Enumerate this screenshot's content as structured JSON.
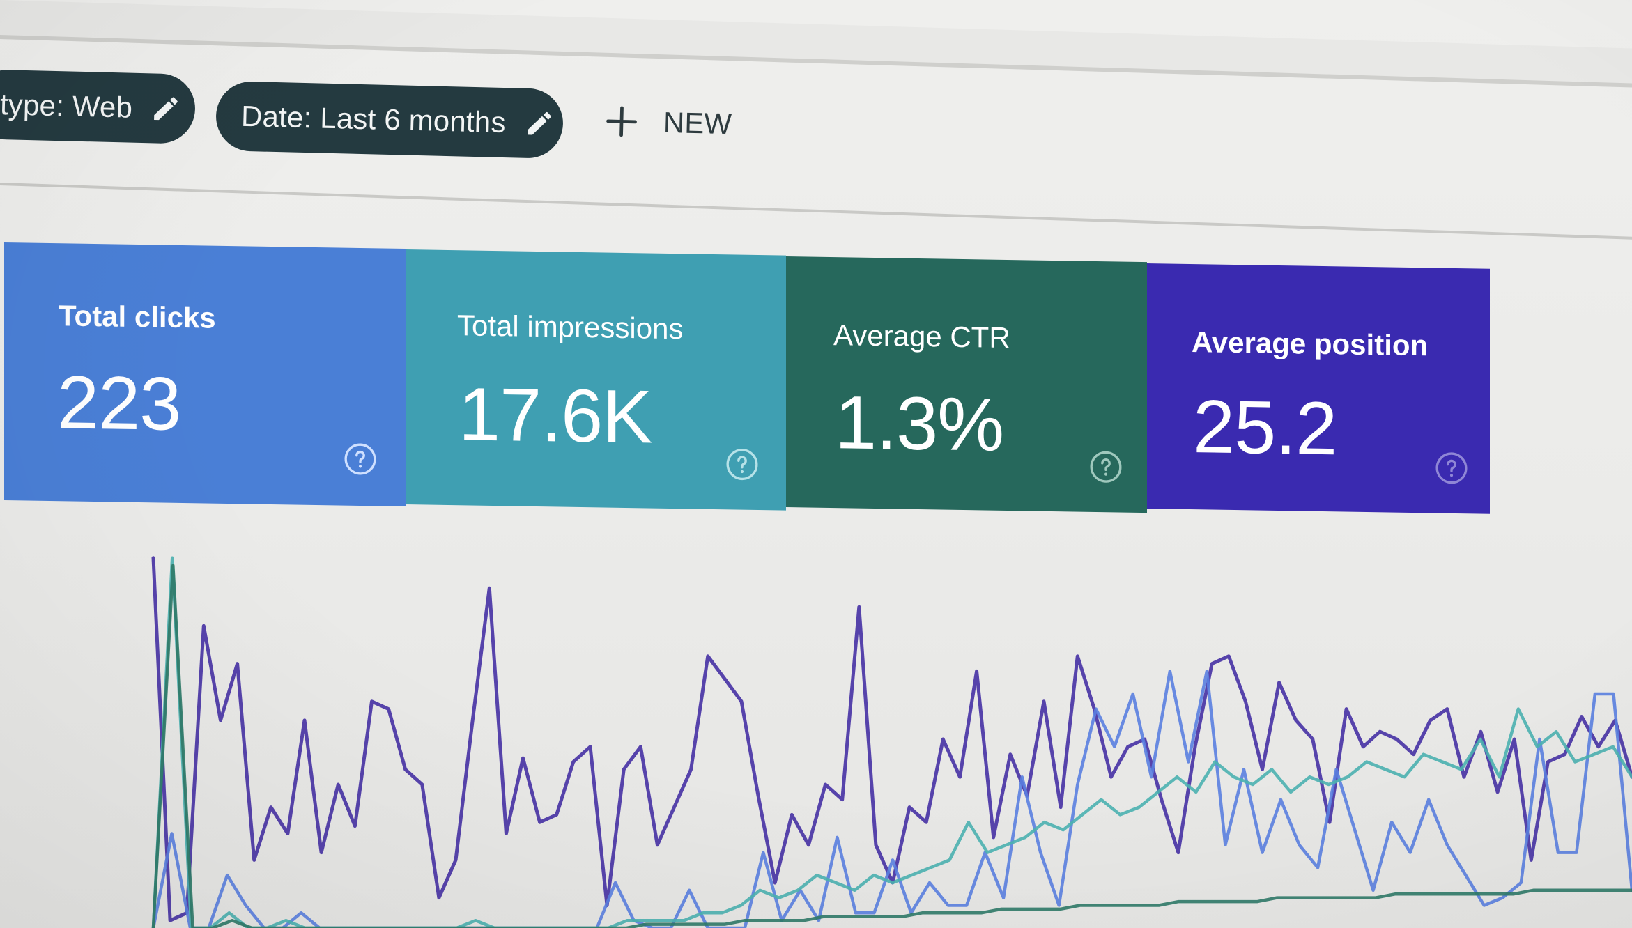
{
  "filters": {
    "type_chip": "type: Web",
    "date_chip": "Date: Last 6 months",
    "new_button": "NEW"
  },
  "metrics": {
    "clicks": {
      "label": "Total clicks",
      "value": "223",
      "color": "#4a7fd6"
    },
    "impressions": {
      "label": "Total impressions",
      "value": "17.6K",
      "color": "#3f9fb2"
    },
    "ctr": {
      "label": "Average CTR",
      "value": "1.3%",
      "color": "#26685c"
    },
    "position": {
      "label": "Average position",
      "value": "25.2",
      "color": "#3a2ab0"
    }
  },
  "icons": {
    "edit": "pencil-icon",
    "add": "plus-icon",
    "help": "help-circle-icon"
  },
  "chart_data": {
    "type": "line",
    "title": "",
    "xlabel": "",
    "ylabel": "",
    "ylim": [
      0,
      100
    ],
    "grid": false,
    "series": [
      {
        "color": "#4e3aa8",
        "values": [
          98,
          2,
          4,
          80,
          55,
          70,
          18,
          32,
          25,
          55,
          20,
          38,
          27,
          60,
          58,
          42,
          38,
          8,
          18,
          55,
          90,
          25,
          45,
          28,
          30,
          44,
          48,
          6,
          42,
          48,
          22,
          32,
          42,
          72,
          66,
          60,
          35,
          12,
          30,
          22,
          38,
          34,
          85,
          22,
          12,
          32,
          28,
          50,
          40,
          68,
          24,
          46,
          35,
          60,
          32,
          72,
          58,
          40,
          48,
          50,
          34,
          20,
          48,
          70,
          72,
          60,
          42,
          65,
          55,
          50,
          28,
          58,
          48,
          52,
          50,
          46,
          55,
          58,
          40,
          52,
          36,
          50,
          18,
          44,
          46,
          56,
          48,
          55,
          40
        ]
      },
      {
        "color": "#5a7fe0",
        "values": [
          0,
          25,
          0,
          0,
          14,
          6,
          0,
          0,
          4,
          0,
          0,
          0,
          0,
          0,
          0,
          0,
          0,
          0,
          0,
          0,
          0,
          0,
          0,
          0,
          0,
          12,
          2,
          0,
          0,
          10,
          0,
          0,
          0,
          20,
          2,
          10,
          2,
          24,
          4,
          4,
          18,
          4,
          12,
          6,
          6,
          20,
          8,
          40,
          20,
          6,
          38,
          58,
          48,
          62,
          40,
          68,
          44,
          68,
          22,
          42,
          20,
          34,
          22,
          16,
          42,
          26,
          10,
          28,
          20,
          34,
          22,
          14,
          6,
          8,
          12,
          50,
          20,
          20,
          62,
          62,
          10
        ]
      },
      {
        "color": "#4bb1b0",
        "values": [
          0,
          98,
          0,
          0,
          4,
          0,
          0,
          2,
          0,
          0,
          0,
          0,
          0,
          0,
          0,
          0,
          0,
          2,
          0,
          0,
          0,
          0,
          0,
          0,
          0,
          2,
          2,
          2,
          2,
          4,
          4,
          6,
          10,
          8,
          10,
          14,
          12,
          10,
          14,
          12,
          14,
          16,
          18,
          28,
          20,
          22,
          24,
          28,
          26,
          30,
          34,
          30,
          32,
          36,
          40,
          36,
          44,
          40,
          38,
          42,
          36,
          40,
          38,
          40,
          44,
          42,
          40,
          46,
          44,
          42,
          50,
          40,
          58,
          48,
          52,
          44,
          46,
          48,
          40
        ]
      },
      {
        "color": "#2f7a68",
        "values": [
          0,
          96,
          0,
          0,
          2,
          0,
          0,
          0,
          0,
          0,
          0,
          0,
          0,
          0,
          0,
          0,
          0,
          0,
          0,
          0,
          0,
          0,
          0,
          0,
          0,
          1,
          1,
          1,
          1,
          1,
          2,
          2,
          2,
          2,
          3,
          3,
          3,
          3,
          3,
          4,
          4,
          4,
          4,
          5,
          5,
          5,
          5,
          6,
          6,
          6,
          6,
          6,
          7,
          7,
          7,
          7,
          7,
          8,
          8,
          8,
          8,
          8,
          8,
          9,
          9,
          9,
          9,
          9,
          9,
          9,
          10,
          10,
          10,
          10,
          10,
          10
        ]
      }
    ]
  }
}
